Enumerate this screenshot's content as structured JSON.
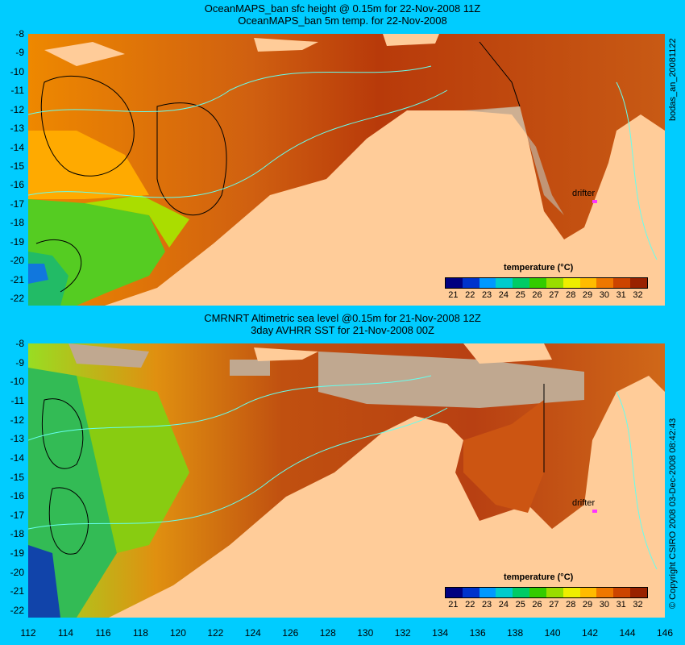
{
  "top_panel": {
    "title_line1": "OceanMAPS_ban sfc height @ 0.15m for 22-Nov-2008 11Z",
    "title_line2": "OceanMAPS_ban 5m temp. for 22-Nov-2008",
    "side_label": "bodas_an_20081122",
    "colorbar_title": "temperature (°C)",
    "drifter_label": "drifter"
  },
  "bottom_panel": {
    "title_line1": "CMRNRT Altimetric sea level  @0.15m  for 21-Nov-2008 12Z",
    "title_line2": "3day AVHRR SST for 21-Nov-2008 00Z",
    "side_label": "© Copyright CSIRO 2008  03-Dec-2008 08:42:43",
    "colorbar_title": "temperature (°C)",
    "drifter_label": "drifter"
  },
  "y_axis": [
    "-8",
    "-9",
    "-10",
    "-11",
    "-12",
    "-13",
    "-14",
    "-15",
    "-16",
    "-17",
    "-18",
    "-19",
    "-20",
    "-21",
    "-22"
  ],
  "x_axis": [
    "112",
    "114",
    "116",
    "118",
    "120",
    "122",
    "124",
    "126",
    "128",
    "130",
    "132",
    "134",
    "136",
    "138",
    "140",
    "142",
    "144",
    "146"
  ],
  "colorbar_ticks": [
    "21",
    "22",
    "23",
    "24",
    "25",
    "26",
    "27",
    "28",
    "29",
    "30",
    "31",
    "32"
  ],
  "colorbar_colors": [
    "#000080",
    "#0033cc",
    "#0099ff",
    "#00cccc",
    "#00cc66",
    "#33cc00",
    "#99dd00",
    "#eeee00",
    "#ffbb00",
    "#ee7700",
    "#cc4400",
    "#992200"
  ],
  "colors": {
    "land": "#ffcc99",
    "no_data": "#c0a890",
    "background": "#00ccff",
    "contour_cyan": "#66ffee",
    "drifter": "#ff33ff"
  }
}
